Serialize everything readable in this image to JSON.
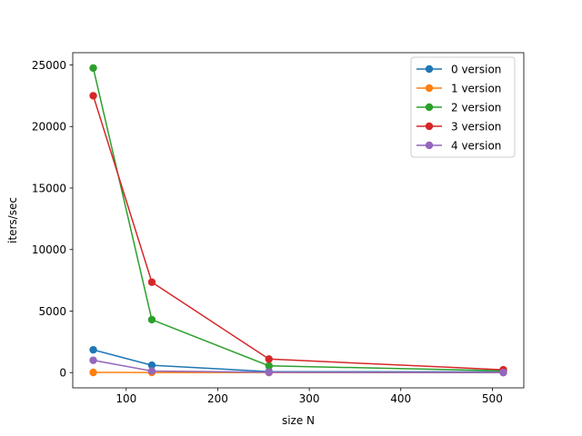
{
  "chart_data": {
    "type": "line",
    "xlabel": "size N",
    "ylabel": "iters/sec",
    "xlim": [
      41.6,
      534.4
    ],
    "ylim": [
      -1240,
      26000
    ],
    "xticks": [
      100,
      200,
      300,
      400,
      500
    ],
    "yticks": [
      0,
      5000,
      10000,
      15000,
      20000,
      25000
    ],
    "x": [
      64,
      128,
      256,
      512
    ],
    "grid": false,
    "legend_position": "top-right",
    "series": [
      {
        "name": "0 version",
        "color": "#1f77b4",
        "values": [
          1850,
          600,
          80,
          60
        ]
      },
      {
        "name": "1 version",
        "color": "#ff7f0e",
        "values": [
          15,
          10,
          5,
          3
        ]
      },
      {
        "name": "2 version",
        "color": "#2ca02c",
        "values": [
          24750,
          4300,
          550,
          150
        ]
      },
      {
        "name": "3 version",
        "color": "#d62728",
        "values": [
          22500,
          7350,
          1100,
          230
        ]
      },
      {
        "name": "4 version",
        "color": "#9467bd",
        "values": [
          1000,
          130,
          25,
          5
        ]
      }
    ]
  }
}
